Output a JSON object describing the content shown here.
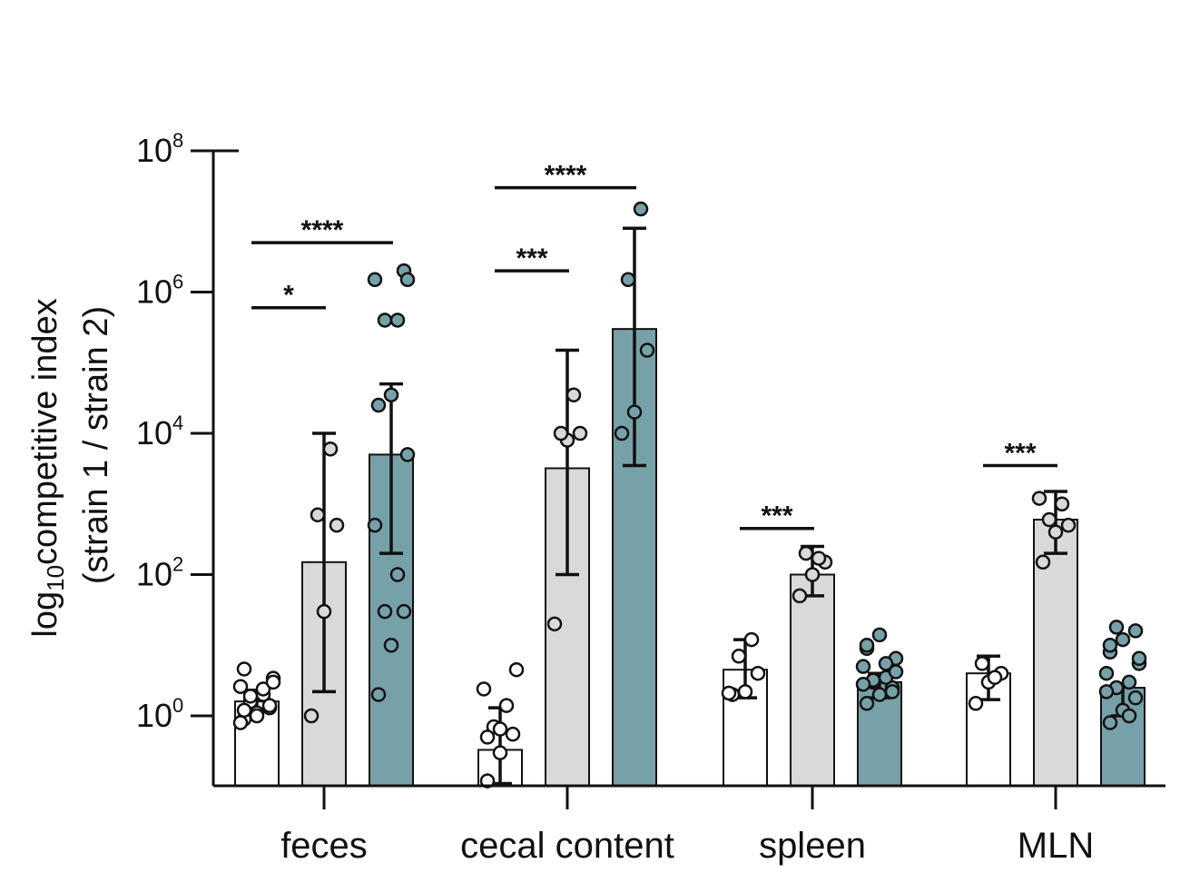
{
  "chart_data": {
    "type": "bar",
    "y_scale": "log",
    "ylim": [
      0.1,
      100000000
    ],
    "ylabel": {
      "line1_prefix": "log",
      "line1_sub": "10",
      "line1_main": "competitive index",
      "line2": "(strain 1 / strain 2)"
    },
    "y_ticks": [
      {
        "base": "10",
        "exp": "0",
        "value": 1
      },
      {
        "base": "10",
        "exp": "2",
        "value": 100
      },
      {
        "base": "10",
        "exp": "4",
        "value": 10000
      },
      {
        "base": "10",
        "exp": "6",
        "value": 1000000
      },
      {
        "base": "10",
        "exp": "8",
        "value": 100000000
      }
    ],
    "categories": [
      "feces",
      "cecal content",
      "spleen",
      "MLN"
    ],
    "series_colors": [
      "#ffffff",
      "#d9d9d9",
      "#77a1a8"
    ],
    "groups": [
      {
        "category": "feces",
        "bars": [
          {
            "value": 1.6,
            "err_low": 1.2,
            "err_high": 2.3,
            "points": [
              0.9,
              1.1,
              1.3,
              1.6,
              2.0,
              2.6,
              3.4,
              4.6,
              1.0,
              1.4,
              1.9,
              2.4,
              0.8,
              3.0,
              1.2
            ]
          },
          {
            "value": 150,
            "err_low": 2.2,
            "err_high": 10000,
            "points": [
              1.0,
              30,
              500,
              700,
              6000
            ]
          },
          {
            "value": 5000,
            "err_low": 200,
            "err_high": 50000,
            "points": [
              2.0,
              10,
              30,
              30,
              100,
              500,
              5000,
              25000,
              35000,
              2000000,
              400000,
              400000,
              1500000,
              1500000
            ]
          }
        ]
      },
      {
        "category": "cecal content",
        "bars": [
          {
            "value": 0.33,
            "err_low": 0.11,
            "err_high": 1.3,
            "points": [
              0.12,
              0.3,
              0.55,
              0.7,
              1.4,
              2.4,
              4.5,
              0.5,
              0.65
            ]
          },
          {
            "value": 3200,
            "err_low": 100,
            "err_high": 150000,
            "points": [
              20,
              8000,
              10000,
              10000,
              35000
            ]
          },
          {
            "value": 300000,
            "err_low": 3500,
            "err_high": 8000000,
            "points": [
              10000,
              20000,
              150000,
              1500000,
              15000000
            ]
          }
        ]
      },
      {
        "category": "spleen",
        "bars": [
          {
            "value": 4.5,
            "err_low": 1.8,
            "err_high": 12,
            "points": [
              2.0,
              2.2,
              4.0,
              7.0,
              12,
              2.1
            ]
          },
          {
            "value": 100,
            "err_low": 50,
            "err_high": 250,
            "points": [
              50,
              100,
              150,
              200,
              170
            ]
          },
          {
            "value": 3.0,
            "err_low": 1.8,
            "err_high": 4.0,
            "points": [
              1.5,
              2.0,
              2.5,
              3.0,
              3.5,
              5.0,
              6.5,
              9.0,
              14.0,
              2.2,
              3.2,
              5.5,
              2.8,
              4.2,
              10.0
            ]
          }
        ]
      },
      {
        "category": "MLN",
        "bars": [
          {
            "value": 4.0,
            "err_low": 1.7,
            "err_high": 7.0,
            "points": [
              1.5,
              3.0,
              4.0,
              5.5,
              3.5
            ]
          },
          {
            "value": 600,
            "err_low": 200,
            "err_high": 1500,
            "points": [
              150,
              400,
              500,
              600,
              1000,
              1200
            ]
          },
          {
            "value": 2.5,
            "err_low": 1.0,
            "err_high": 2.8,
            "points": [
              0.8,
              1.2,
              1.8,
              2.5,
              3.0,
              4.0,
              5.5,
              8.0,
              12.0,
              16.0,
              18.0,
              1.0,
              2.2,
              6.5,
              10.0
            ]
          }
        ]
      }
    ],
    "significance": [
      {
        "group": 0,
        "from_bar": 0,
        "to_bar": 1,
        "label": "*",
        "y": 600000
      },
      {
        "group": 0,
        "from_bar": 0,
        "to_bar": 2,
        "label": "****",
        "y": 5000000
      },
      {
        "group": 1,
        "from_bar": 0,
        "to_bar": 1,
        "label": "***",
        "y": 2000000
      },
      {
        "group": 1,
        "from_bar": 0,
        "to_bar": 2,
        "label": "****",
        "y": 30000000
      },
      {
        "group": 2,
        "from_bar": 0,
        "to_bar": 1,
        "label": "***",
        "y": 450
      },
      {
        "group": 3,
        "from_bar": 0,
        "to_bar": 1,
        "label": "***",
        "y": 3500
      }
    ]
  }
}
